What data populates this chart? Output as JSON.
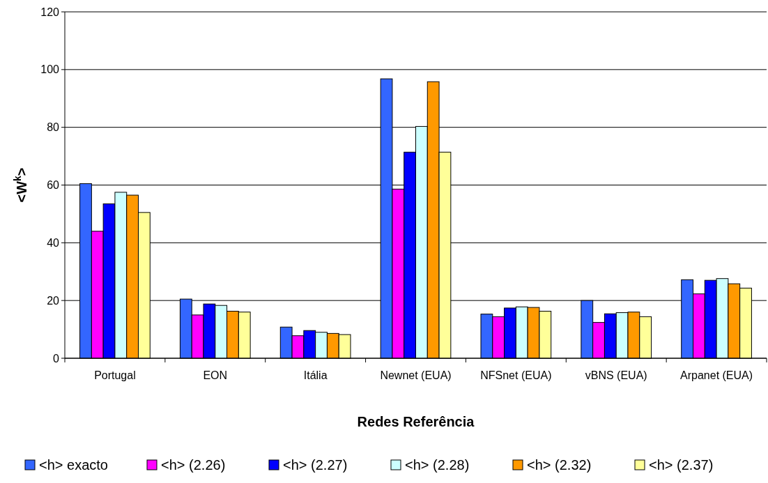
{
  "chart_data": {
    "type": "bar",
    "xlabel": "Redes Referência",
    "ylabel": "<W$^{k}$>",
    "categories": [
      "Portugal",
      "EON",
      "Itália",
      "Newnet (EUA)",
      "NFSnet (EUA)",
      "vBNS (EUA)",
      "Arpanet (EUA)"
    ],
    "series": [
      {
        "name": "<h> exacto",
        "color": "#3366ff",
        "values": [
          60.5,
          20.5,
          10.8,
          96.8,
          15.3,
          20,
          27.2
        ]
      },
      {
        "name": "<h> (2.26)",
        "color": "#ff00ff",
        "values": [
          44,
          15,
          7.8,
          58.6,
          14.4,
          12.4,
          22.3
        ]
      },
      {
        "name": "<h> (2.27)",
        "color": "#0000ff",
        "values": [
          53.5,
          18.8,
          9.6,
          71.4,
          17.4,
          15.4,
          27
        ]
      },
      {
        "name": "<h> (2.28)",
        "color": "#ccffff",
        "values": [
          57.5,
          18.3,
          9,
          80.3,
          17.8,
          15.8,
          27.6
        ]
      },
      {
        "name": "<h> (2.32)",
        "color": "#ff9900",
        "values": [
          56.5,
          16.3,
          8.6,
          95.8,
          17.6,
          16,
          25.8
        ]
      },
      {
        "name": "<h> (2.37)",
        "color": "#ffff99",
        "values": [
          50.5,
          16,
          8.2,
          71.4,
          16.3,
          14.4,
          24.3
        ]
      }
    ],
    "ylim": [
      0,
      120
    ],
    "yticks": [
      0,
      20,
      40,
      60,
      80,
      100,
      120
    ],
    "grid": "y",
    "legend": "bottom"
  }
}
